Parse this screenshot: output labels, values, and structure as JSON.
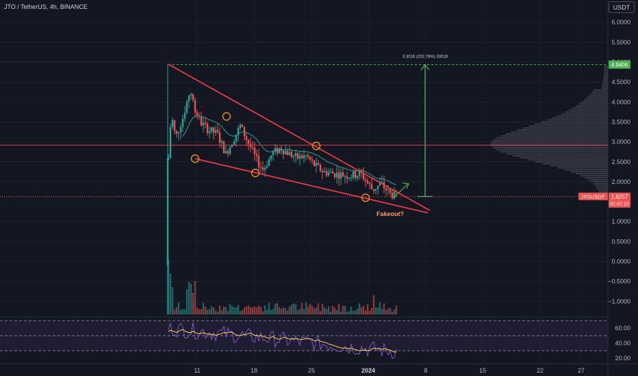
{
  "header": {
    "title": "JTO / TetherUS, 4h, BINANCE",
    "currency_button": "USDT"
  },
  "colors": {
    "background": "#131722",
    "up": "#26a69a",
    "down": "#ef5350",
    "trendline": "#f23645",
    "target_arrow": "#4caf50",
    "ema": "#26a69a",
    "rsi_line": "#7e57c2",
    "rsi_ma": "#ffd54f",
    "circle": "#ff9800",
    "fakeout_text": "#ff9b57"
  },
  "chart_data": {
    "type": "candlestick",
    "symbol": "JTO / TetherUS",
    "interval": "4h",
    "exchange": "BINANCE",
    "y_axis": {
      "ticks": [
        "6.0000",
        "5.5000",
        "5.0000",
        "4.5000",
        "4.0000",
        "3.5000",
        "3.0000",
        "2.5000",
        "2.0000",
        "1.0000",
        "0.5000",
        "0.0000",
        "−0.5000",
        "−1.0000"
      ],
      "tick_values": [
        6.0,
        5.5,
        5.0,
        4.5,
        4.0,
        3.5,
        3.0,
        2.5,
        2.0,
        1.0,
        0.5,
        0.0,
        -0.5,
        -1.0
      ],
      "range": [
        -1.45,
        6.35
      ]
    },
    "x_axis": {
      "ticks": [
        "11",
        "18",
        "25",
        "2024",
        "8",
        "15",
        "22",
        "27"
      ],
      "bold_tick": "2024"
    },
    "price_tags": [
      {
        "label": "4.9406",
        "value": 4.9406
      },
      {
        "label": "JTOUSDT",
        "value": "1.6257",
        "sub": "01:57:10"
      }
    ],
    "horizontal_line": {
      "value": 2.92
    },
    "current_price_line": {
      "value": 1.6257
    },
    "wedge": {
      "upper": {
        "from": [
          0,
          4.95
        ],
        "to": [
          1,
          1.32
        ]
      },
      "lower": {
        "from": [
          0,
          2.58
        ],
        "to": [
          1,
          1.25
        ]
      }
    },
    "target": {
      "label": "3.3016 (202.78%) 33016",
      "from": 1.63,
      "to": 4.94
    },
    "annotation": "Fakeout?",
    "rsi": {
      "ticks": [
        "60.00",
        "40.00",
        "20.00"
      ],
      "tick_values": [
        60,
        40,
        20
      ],
      "band": [
        30,
        70
      ]
    }
  }
}
